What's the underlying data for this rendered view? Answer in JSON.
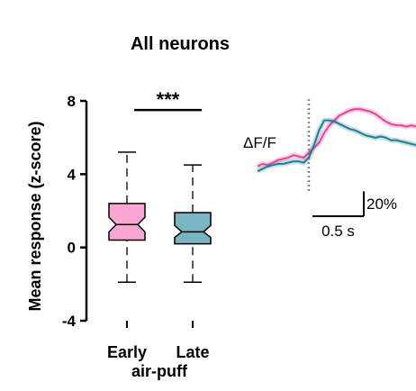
{
  "chart_data": [
    {
      "type": "box",
      "title": "All neurons",
      "ylabel": "Mean response (z-score)",
      "xlabel": "air-puff",
      "ylim": [
        -4,
        8
      ],
      "yticks": [
        -4,
        0,
        4,
        8
      ],
      "categories": [
        "Early",
        "Late"
      ],
      "boxes": [
        {
          "name": "Early",
          "min": -1.9,
          "q1": 0.4,
          "median": 1.25,
          "q3": 2.4,
          "max": 5.2,
          "notch_low": 0.85,
          "notch_high": 1.65,
          "color": "#f9a7d2"
        },
        {
          "name": "Late",
          "min": -1.9,
          "q1": 0.2,
          "median": 0.85,
          "q3": 1.9,
          "max": 4.5,
          "notch_low": 0.55,
          "notch_high": 1.2,
          "color": "#79b5c3"
        }
      ],
      "significance": {
        "label": "***",
        "between": [
          "Early",
          "Late"
        ],
        "y": 7.8
      }
    },
    {
      "type": "line",
      "ylabel": "ΔF/F",
      "scalebar": {
        "y_label": "20%",
        "y_value": 20,
        "x_label": "0.5 s",
        "x_value": 0.5
      },
      "onset_marker": {
        "x": 0,
        "style": "dotted"
      },
      "x": [
        -0.5,
        -0.45,
        -0.4,
        -0.35,
        -0.3,
        -0.25,
        -0.2,
        -0.15,
        -0.1,
        -0.05,
        0,
        0.05,
        0.1,
        0.15,
        0.2,
        0.25,
        0.3,
        0.35,
        0.4,
        0.45,
        0.5,
        0.55,
        0.6,
        0.65,
        0.7,
        0.75,
        0.8,
        0.85,
        0.9,
        0.95,
        1.0,
        1.05
      ],
      "series": [
        {
          "color": "#e8449a",
          "values": [
            1,
            3,
            2,
            4,
            6,
            7,
            8,
            10,
            9,
            8,
            12,
            16,
            20,
            28,
            34,
            38,
            42,
            44,
            46,
            47,
            47,
            46,
            45,
            43,
            40,
            37,
            35,
            34,
            34,
            33,
            34,
            33
          ]
        },
        {
          "color": "#1f7f93",
          "values": [
            -3,
            -1,
            1,
            2,
            3,
            3,
            4,
            5,
            5,
            4,
            8,
            18,
            30,
            38,
            38,
            37,
            35,
            33,
            31,
            30,
            28,
            26,
            25,
            24,
            25,
            24,
            22,
            22,
            21,
            20,
            19,
            18
          ]
        }
      ]
    }
  ]
}
